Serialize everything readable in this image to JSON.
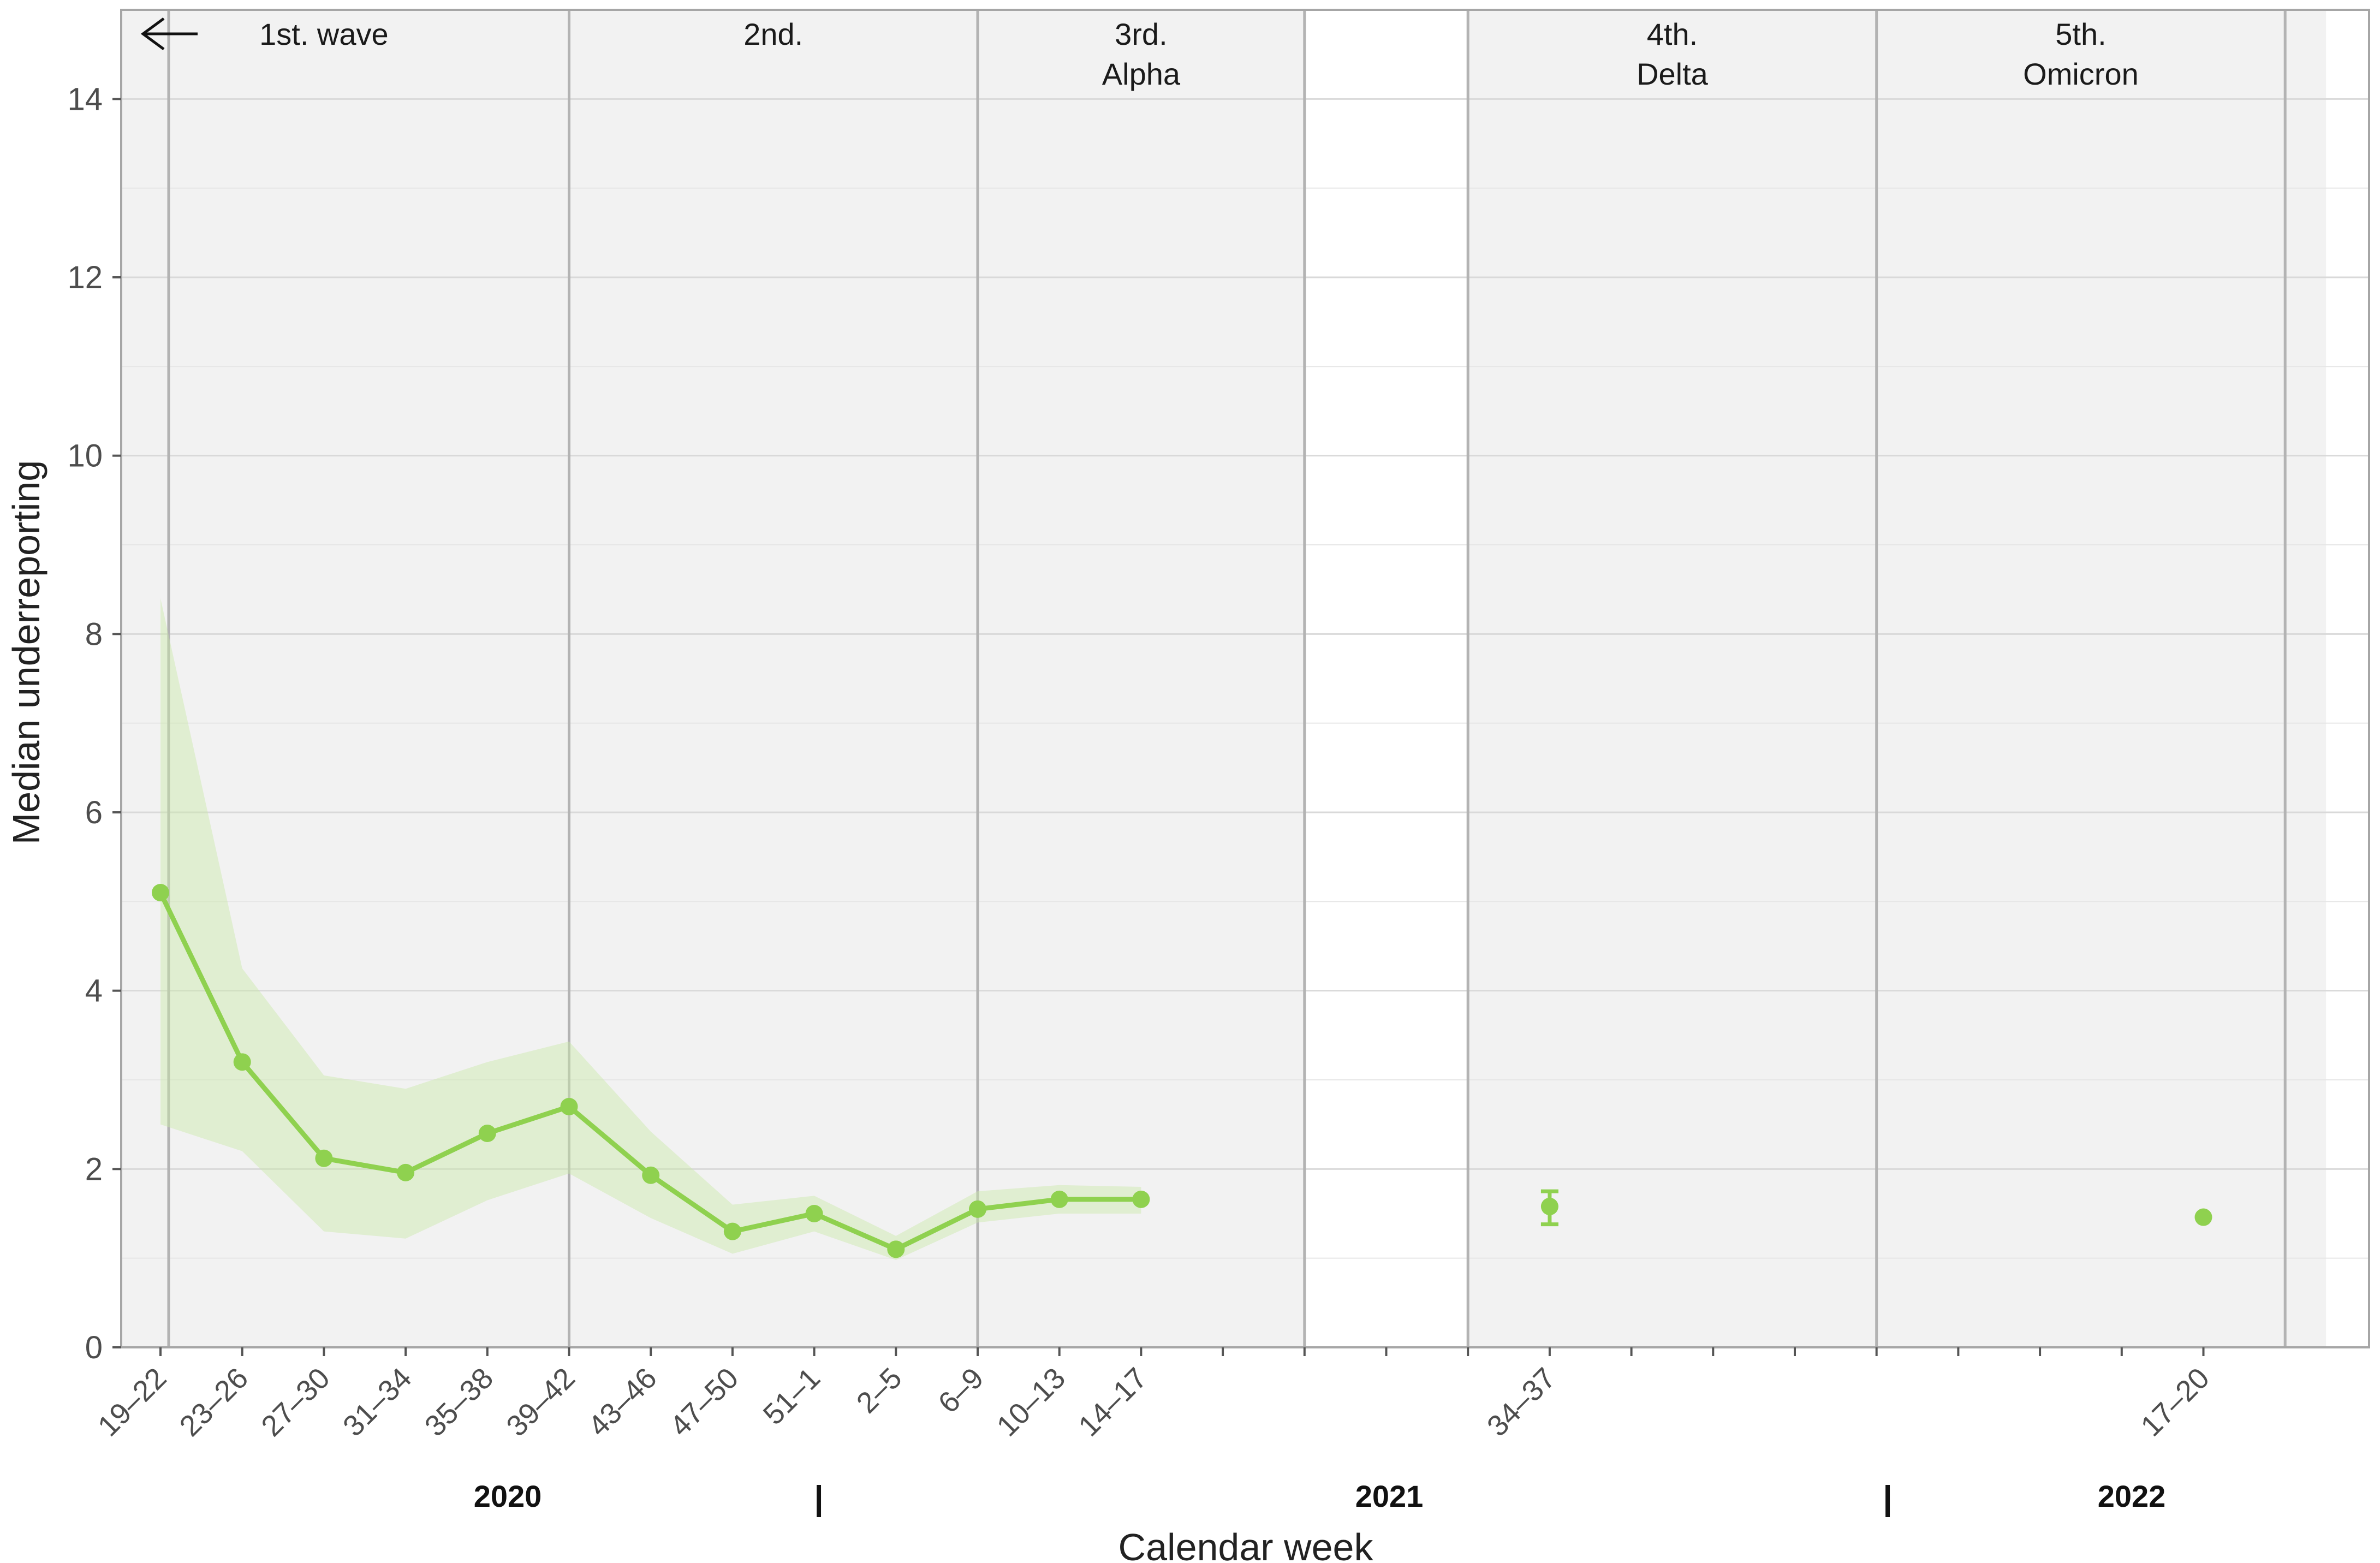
{
  "chart_data": {
    "type": "line",
    "title": "",
    "xlabel": "Calendar week",
    "ylabel": "Median underreporting",
    "ylim": [
      0,
      15
    ],
    "yticks": [
      0,
      2,
      4,
      6,
      8,
      10,
      12,
      14
    ],
    "grid": true,
    "categories": [
      "19–22",
      "23–26",
      "27–30",
      "31–34",
      "35–38",
      "39–42",
      "43–46",
      "47–50",
      "51–1",
      "2–5",
      "6–9",
      "10–13",
      "14–17",
      "",
      "",
      "",
      "",
      "34–37",
      "",
      "",
      "",
      "",
      "",
      "",
      "",
      "17–20"
    ],
    "series": [
      {
        "name": "",
        "color": "#8fd14f",
        "points": [
          {
            "x": "19–22",
            "y": 5.1,
            "lower": 2.5,
            "upper": 8.4
          },
          {
            "x": "23–26",
            "y": 3.2,
            "lower": 2.2,
            "upper": 4.25
          },
          {
            "x": "27–30",
            "y": 2.12,
            "lower": 1.3,
            "upper": 3.05
          },
          {
            "x": "31–34",
            "y": 1.96,
            "lower": 1.22,
            "upper": 2.9
          },
          {
            "x": "35–38",
            "y": 2.4,
            "lower": 1.65,
            "upper": 3.2
          },
          {
            "x": "39–42",
            "y": 2.7,
            "lower": 1.95,
            "upper": 3.43
          },
          {
            "x": "43–46",
            "y": 1.93,
            "lower": 1.45,
            "upper": 2.42
          },
          {
            "x": "47–50",
            "y": 1.3,
            "lower": 1.05,
            "upper": 1.6
          },
          {
            "x": "51–1",
            "y": 1.5,
            "lower": 1.3,
            "upper": 1.7
          },
          {
            "x": "2–5",
            "y": 1.1,
            "lower": 0.98,
            "upper": 1.25
          },
          {
            "x": "6–9",
            "y": 1.55,
            "lower": 1.4,
            "upper": 1.75
          },
          {
            "x": "10–13",
            "y": 1.66,
            "lower": 1.5,
            "upper": 1.82
          },
          {
            "x": "14–17",
            "y": 1.66,
            "lower": 1.5,
            "upper": 1.8
          }
        ]
      },
      {
        "name": "",
        "color": "#8fd14f",
        "points": [
          {
            "x": "34–37",
            "y": 1.58,
            "lower": 1.38,
            "upper": 1.75
          }
        ]
      },
      {
        "name": "",
        "color": "#8fd14f",
        "points": [
          {
            "x": "17–20",
            "y": 1.46
          }
        ]
      }
    ],
    "waves": [
      {
        "label": "1st. wave",
        "label2": "",
        "shaded": true,
        "arrow": true
      },
      {
        "label": "2nd.",
        "label2": "",
        "shaded": true
      },
      {
        "label": "3rd.",
        "label2": "Alpha",
        "shaded": true
      },
      {
        "label": "",
        "label2": "",
        "shaded": false
      },
      {
        "label": "4th.",
        "label2": "Delta",
        "shaded": true
      },
      {
        "label": "5th.",
        "label2": "Omicron",
        "shaded": true
      }
    ],
    "years": [
      "2020",
      "2021",
      "2022"
    ],
    "year_separator": "|"
  }
}
